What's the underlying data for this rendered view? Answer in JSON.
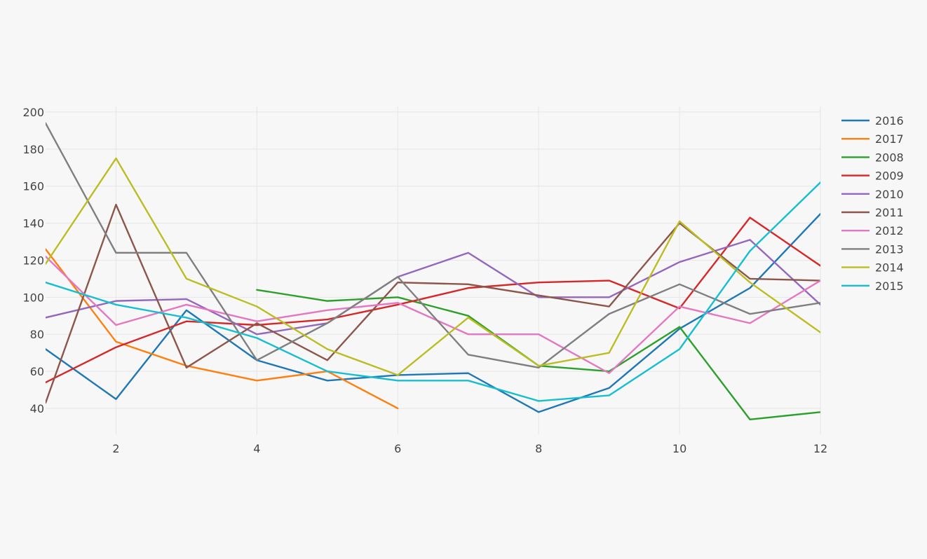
{
  "chart_data": {
    "type": "line",
    "title": "",
    "xlabel": "",
    "ylabel": "",
    "xlim": [
      1,
      12
    ],
    "ylim": [
      26,
      203
    ],
    "x_ticks": [
      2,
      4,
      6,
      8,
      10,
      12
    ],
    "y_ticks": [
      40,
      60,
      80,
      100,
      120,
      140,
      160,
      180,
      200
    ],
    "grid": true,
    "legend_position": "right",
    "series": [
      {
        "name": "2016",
        "color": "#1f77b4",
        "x": [
          1,
          2,
          3,
          4,
          5,
          6,
          7,
          8,
          9,
          10,
          11,
          12
        ],
        "values": [
          72,
          45,
          93,
          66,
          55,
          58,
          59,
          38,
          51,
          83,
          105,
          145
        ]
      },
      {
        "name": "2017",
        "color": "#ff7f0e",
        "x": [
          1,
          2,
          3,
          4,
          5,
          6
        ],
        "values": [
          126,
          76,
          63,
          55,
          60,
          40
        ]
      },
      {
        "name": "2008",
        "color": "#2ca02c",
        "x": [
          4,
          5,
          6,
          7,
          8,
          9,
          10,
          11,
          12
        ],
        "values": [
          104,
          98,
          100,
          90,
          63,
          60,
          84,
          34,
          38
        ]
      },
      {
        "name": "2009",
        "color": "#d62728",
        "x": [
          1,
          2,
          3,
          4,
          5,
          6,
          7,
          8,
          9,
          10,
          11,
          12
        ],
        "values": [
          54,
          73,
          87,
          85,
          88,
          96,
          105,
          108,
          109,
          94,
          143,
          117
        ]
      },
      {
        "name": "2010",
        "color": "#9467bd",
        "x": [
          1,
          2,
          3,
          4,
          5,
          6,
          7,
          8,
          9,
          10,
          11,
          12
        ],
        "values": [
          89,
          98,
          99,
          80,
          86,
          111,
          124,
          100,
          100,
          119,
          131,
          96
        ]
      },
      {
        "name": "2011",
        "color": "#8c564b",
        "x": [
          1,
          2,
          3,
          4,
          5,
          6,
          7,
          8,
          9,
          10,
          11,
          12
        ],
        "values": [
          43,
          150,
          62,
          86,
          66,
          108,
          107,
          101,
          95,
          140,
          110,
          109
        ]
      },
      {
        "name": "2012",
        "color": "#e377c2",
        "x": [
          1,
          2,
          3,
          4,
          5,
          6,
          7,
          8,
          9,
          10,
          11,
          12
        ],
        "values": [
          122,
          85,
          96,
          87,
          93,
          97,
          80,
          80,
          59,
          95,
          86,
          109
        ]
      },
      {
        "name": "2013",
        "color": "#7f7f7f",
        "x": [
          1,
          2,
          3,
          4,
          5,
          6,
          7,
          8,
          9,
          10,
          11,
          12
        ],
        "values": [
          194,
          124,
          124,
          66,
          86,
          111,
          69,
          62,
          91,
          107,
          91,
          97
        ]
      },
      {
        "name": "2014",
        "color": "#bcbd22",
        "x": [
          1,
          2,
          3,
          4,
          5,
          6,
          7,
          8,
          9,
          10,
          11,
          12
        ],
        "values": [
          118,
          175,
          110,
          95,
          72,
          58,
          89,
          63,
          70,
          141,
          108,
          81
        ]
      },
      {
        "name": "2015",
        "color": "#17becf",
        "x": [
          1,
          2,
          3,
          4,
          5,
          6,
          7,
          8,
          9,
          10,
          11,
          12
        ],
        "values": [
          108,
          96,
          89,
          78,
          60,
          55,
          55,
          44,
          47,
          72,
          125,
          162
        ]
      }
    ]
  }
}
